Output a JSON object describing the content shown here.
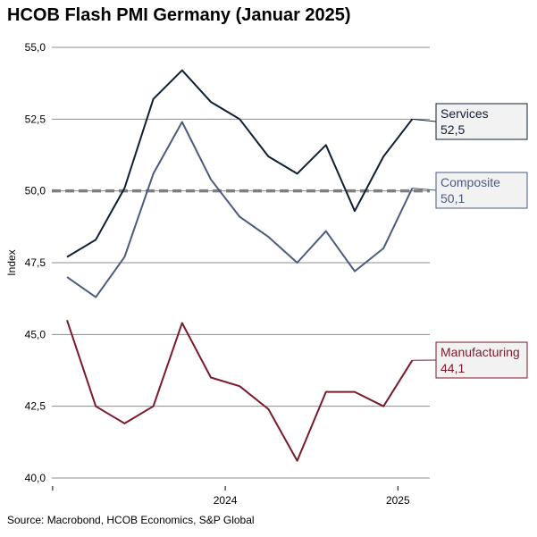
{
  "chart_data": {
    "type": "line",
    "title": "HCOB Flash PMI Germany (Januar 2025)",
    "ylabel": "Index",
    "xlabel": "",
    "ylim": [
      40,
      55
    ],
    "y_ticks": [
      40,
      42.5,
      45,
      47.5,
      50,
      52.5,
      55
    ],
    "y_tick_labels": [
      "40,0",
      "42,5",
      "45,0",
      "47,5",
      "50,0",
      "52,5",
      "55,0"
    ],
    "x": [
      "2024-01",
      "2024-02",
      "2024-03",
      "2024-04",
      "2024-05",
      "2024-06",
      "2024-07",
      "2024-08",
      "2024-09",
      "2024-10",
      "2024-11",
      "2024-12",
      "2025-01"
    ],
    "x_tick_labels": [
      {
        "label": "",
        "index": -0.5
      },
      {
        "label": "2024",
        "index": 5.5
      },
      {
        "label": "2025",
        "index": 11.5
      }
    ],
    "reference_line": {
      "value": 50,
      "style": "dashed"
    },
    "series": [
      {
        "name": "Services",
        "label_value": "52,5",
        "color": "#0f1f33",
        "values": [
          47.7,
          48.3,
          50.1,
          53.2,
          54.2,
          53.1,
          52.5,
          51.2,
          50.6,
          51.6,
          49.3,
          51.2,
          52.5
        ]
      },
      {
        "name": "Composite",
        "label_value": "50,1",
        "color": "#4b5a80",
        "values": [
          47.0,
          46.3,
          47.7,
          50.6,
          52.4,
          50.4,
          49.1,
          48.4,
          47.5,
          48.6,
          47.2,
          48.0,
          50.1
        ]
      },
      {
        "name": "Manufacturing",
        "label_value": "44,1",
        "color": "#7a1a2a",
        "values": [
          45.5,
          42.5,
          41.9,
          42.5,
          45.4,
          43.5,
          43.2,
          42.4,
          40.6,
          43.0,
          43.0,
          42.5,
          44.1
        ]
      }
    ]
  },
  "source": "Source: Macrobond, HCOB Economics, S&P Global"
}
